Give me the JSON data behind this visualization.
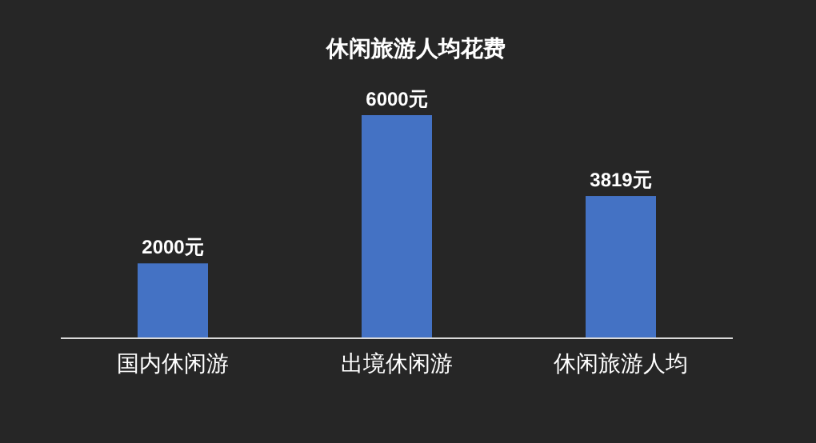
{
  "chart_data": {
    "type": "bar",
    "title": "休闲旅游人均花费",
    "categories": [
      "国内休闲游",
      "出境休闲游",
      "休闲旅游人均"
    ],
    "values": [
      2000,
      6000,
      3819
    ],
    "value_labels": [
      "2000元",
      "6000元",
      "3819元"
    ],
    "color": "#4472c4"
  }
}
